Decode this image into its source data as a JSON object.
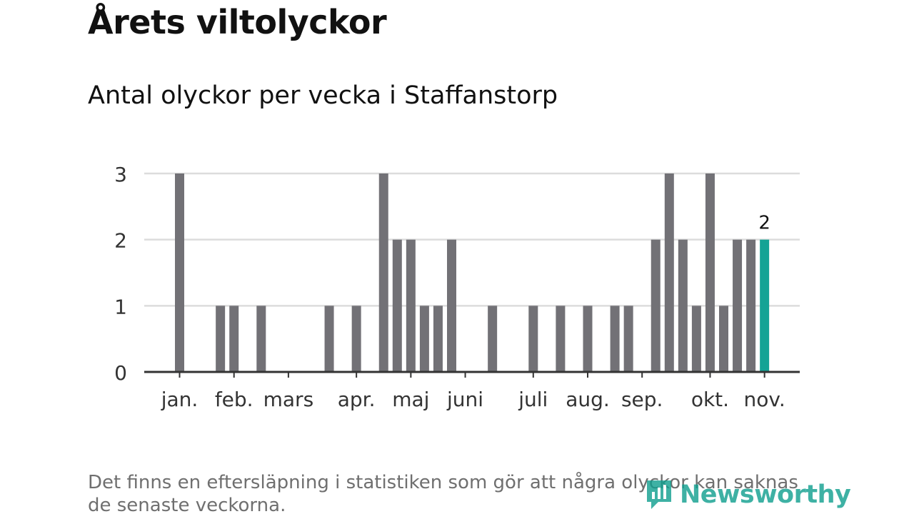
{
  "header": {
    "title": "Årets viltolyckor",
    "subtitle": "Antal olyckor per vecka i Staffanstorp"
  },
  "footnote": "Det finns en eftersläpning i statistiken som gör att några olyckor kan saknas de senaste veckorna.",
  "brand": {
    "name": "Newsworthy",
    "color": "#0f9e8e"
  },
  "colors": {
    "bar": "#727176",
    "highlight": "#14a395",
    "grid": "#dcdcdc",
    "axis": "#333333"
  },
  "chart_data": {
    "type": "bar",
    "title": "Antal olyckor per vecka i Staffanstorp",
    "xlabel": "",
    "ylabel": "",
    "ylim": [
      0,
      3
    ],
    "yticks": [
      0,
      1,
      2,
      3
    ],
    "grid": true,
    "weeks": [
      1,
      2,
      3,
      4,
      5,
      6,
      7,
      8,
      9,
      10,
      11,
      12,
      13,
      14,
      15,
      16,
      17,
      18,
      19,
      20,
      21,
      22,
      23,
      24,
      25,
      26,
      27,
      28,
      29,
      30,
      31,
      32,
      33,
      34,
      35,
      36,
      37,
      38,
      39,
      40,
      41,
      42,
      43,
      44
    ],
    "values": [
      3,
      0,
      0,
      1,
      1,
      0,
      1,
      0,
      0,
      0,
      0,
      1,
      0,
      1,
      0,
      3,
      2,
      2,
      1,
      1,
      2,
      0,
      0,
      1,
      0,
      0,
      1,
      0,
      1,
      0,
      1,
      0,
      1,
      1,
      0,
      2,
      3,
      2,
      1,
      3,
      1,
      2,
      2,
      2
    ],
    "highlight_index": 43,
    "highlight_label": "2",
    "months": [
      {
        "label": "jan.",
        "week": 1
      },
      {
        "label": "feb.",
        "week": 5
      },
      {
        "label": "mars",
        "week": 9
      },
      {
        "label": "apr.",
        "week": 14
      },
      {
        "label": "maj",
        "week": 18
      },
      {
        "label": "juni",
        "week": 22
      },
      {
        "label": "juli",
        "week": 27
      },
      {
        "label": "aug.",
        "week": 31
      },
      {
        "label": "sep.",
        "week": 35
      },
      {
        "label": "okt.",
        "week": 40
      },
      {
        "label": "nov.",
        "week": 44
      }
    ]
  }
}
